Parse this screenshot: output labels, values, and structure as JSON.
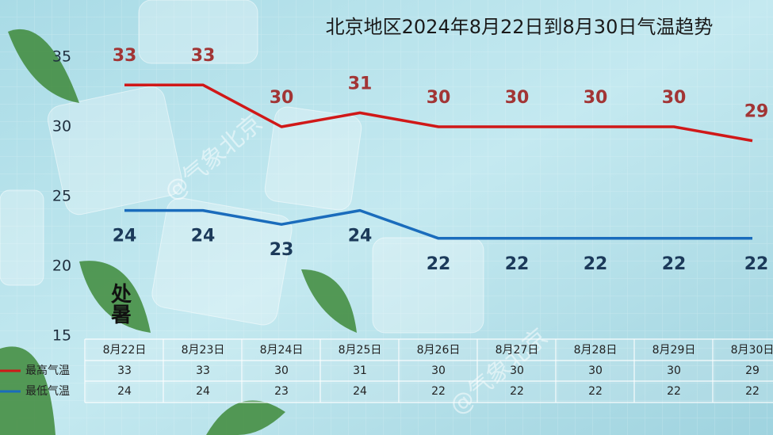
{
  "chart_data": {
    "type": "line",
    "title": "北京地区2024年8月22日到8月30日气温趋势",
    "categories": [
      "8月22日",
      "8月23日",
      "8月24日",
      "8月25日",
      "8月26日",
      "8月27日",
      "8月28日",
      "8月29日",
      "8月30日"
    ],
    "series": [
      {
        "name": "最高气温",
        "color": "#d01818",
        "values": [
          33,
          33,
          30,
          31,
          30,
          30,
          30,
          30,
          29
        ]
      },
      {
        "name": "最低气温",
        "color": "#1a6cbc",
        "values": [
          24,
          24,
          23,
          24,
          22,
          22,
          22,
          22,
          22
        ]
      }
    ],
    "ylim": [
      15,
      35
    ],
    "yticks": [
      15,
      20,
      25,
      30,
      35
    ],
    "solar_term": "处暑",
    "watermark": "@气象北京"
  }
}
